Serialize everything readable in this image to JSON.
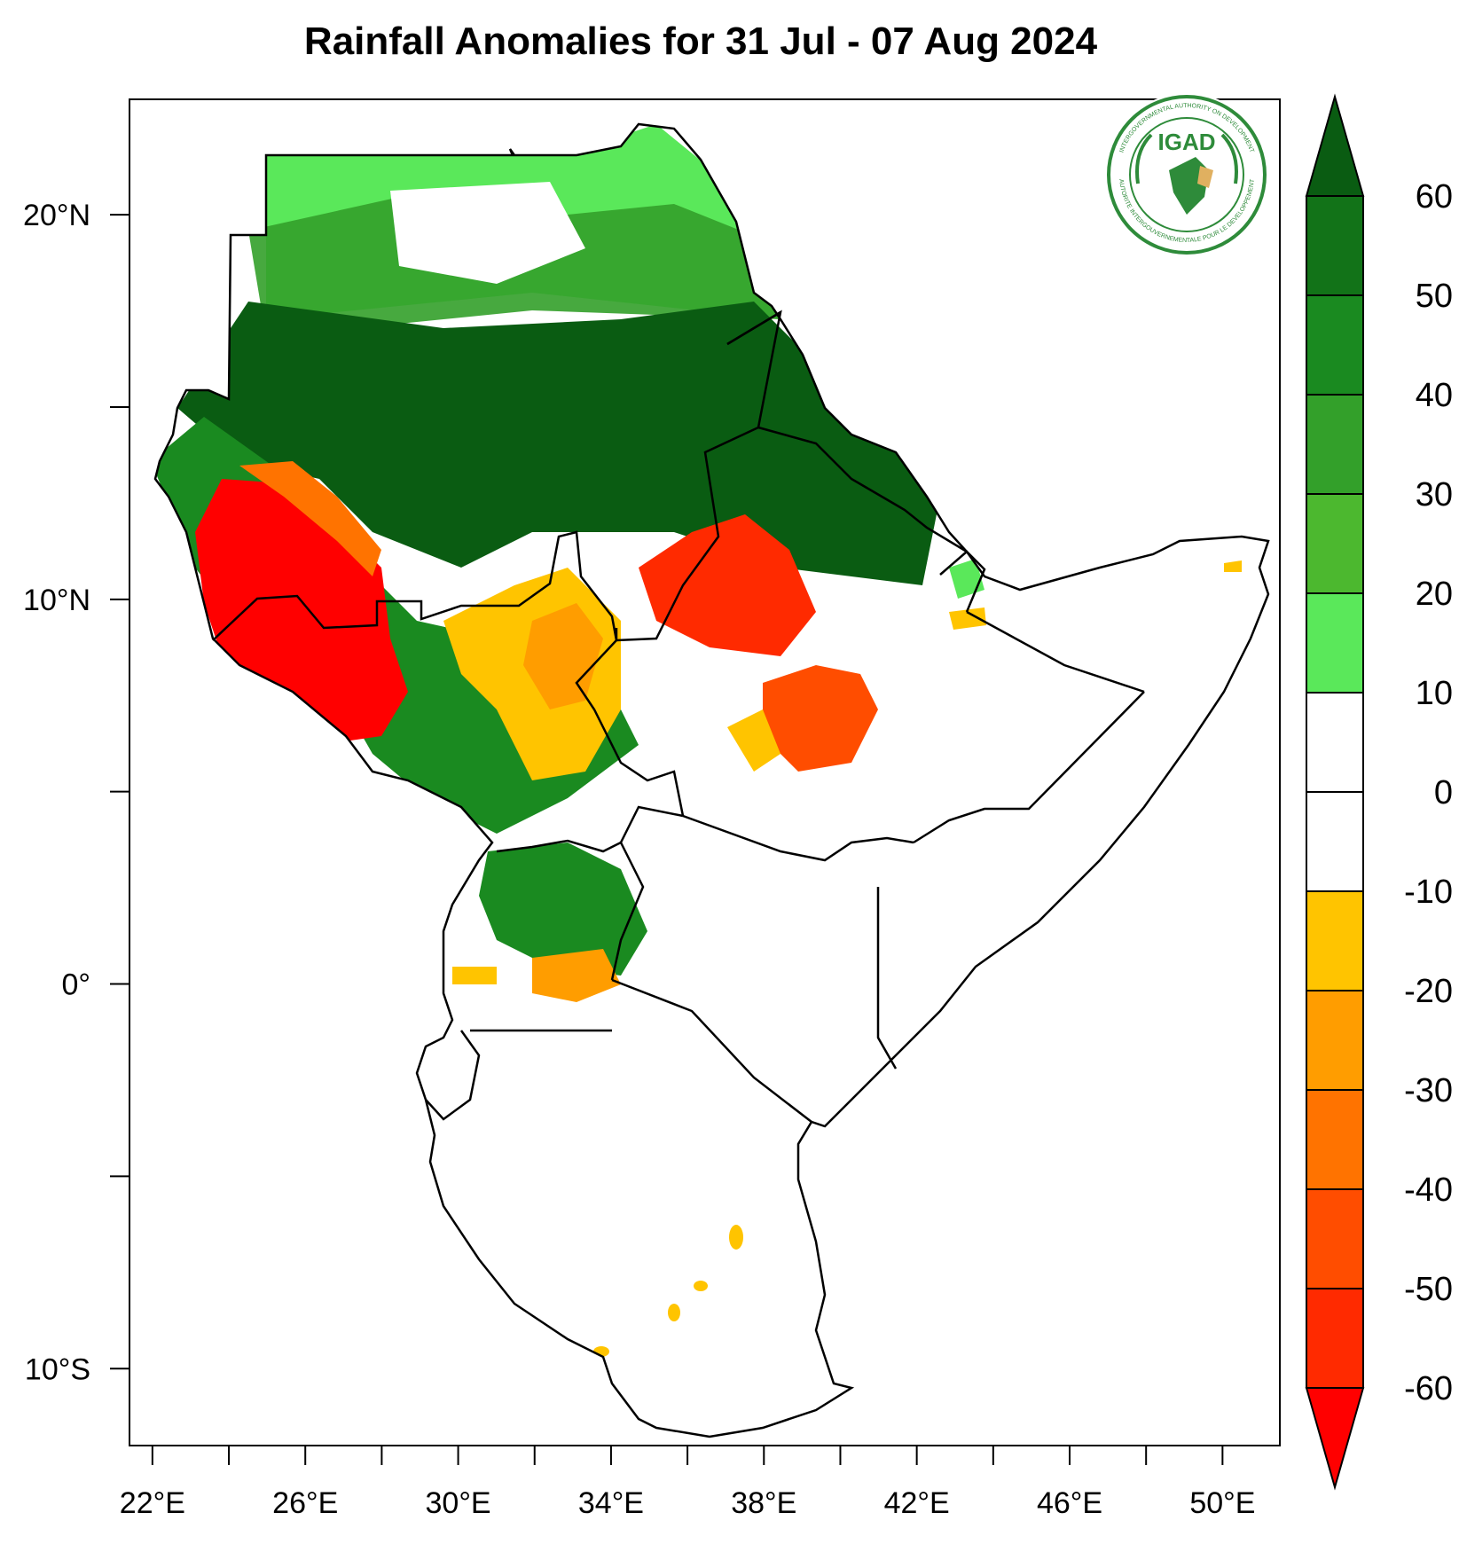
{
  "title": "Rainfall Anomalies for 31 Jul - 07 Aug 2024",
  "logo": {
    "text": "IGAD",
    "ring_text_top": "INTERGOVERNMENTAL AUTHORITY ON DEVELOPMENT",
    "ring_text_bottom": "AUTORITE INTERGOUVERNEMENTALE POUR LE DEVELOPPEMENT"
  },
  "map": {
    "lat_range": [
      -12,
      23
    ],
    "lon_range": [
      21.4,
      51.5
    ],
    "lat_ticks": [
      {
        "value": 20,
        "label": "20°N"
      },
      {
        "value": 15,
        "label": ""
      },
      {
        "value": 10,
        "label": "10°N"
      },
      {
        "value": 5,
        "label": ""
      },
      {
        "value": 0,
        "label": "0°"
      },
      {
        "value": -5,
        "label": ""
      },
      {
        "value": -10,
        "label": "10°S"
      }
    ],
    "lon_ticks": [
      {
        "value": 22,
        "label": "22°E"
      },
      {
        "value": 24,
        "label": ""
      },
      {
        "value": 26,
        "label": "26°E"
      },
      {
        "value": 28,
        "label": ""
      },
      {
        "value": 30,
        "label": "30°E"
      },
      {
        "value": 32,
        "label": ""
      },
      {
        "value": 34,
        "label": "34°E"
      },
      {
        "value": 36,
        "label": ""
      },
      {
        "value": 38,
        "label": "38°E"
      },
      {
        "value": 40,
        "label": ""
      },
      {
        "value": 42,
        "label": "42°E"
      },
      {
        "value": 44,
        "label": ""
      },
      {
        "value": 46,
        "label": "46°E"
      },
      {
        "value": 48,
        "label": ""
      },
      {
        "value": 50,
        "label": "50°E"
      }
    ]
  },
  "colorbar": {
    "labels": [
      "60",
      "50",
      "40",
      "30",
      "20",
      "10",
      "0",
      "-10",
      "-20",
      "-30",
      "-40",
      "-50",
      "-60"
    ],
    "colors": [
      "#0a5c12",
      "#127318",
      "#1a8a20",
      "#33a02a",
      "#4cb82f",
      "#5ae85a",
      "#ffffff",
      "#ffffff",
      "#ffc400",
      "#ff9d00",
      "#ff7300",
      "#ff4d00",
      "#ff2a00",
      "#ff0000"
    ]
  },
  "legend_colors": {
    "strong_wet": "#0a5c12",
    "moderate_wet": "#33a02a",
    "light_wet": "#5ae85a",
    "light_dry": "#ffc400",
    "moderate_dry": "#ff9d00",
    "strong_dry": "#ff0000"
  }
}
